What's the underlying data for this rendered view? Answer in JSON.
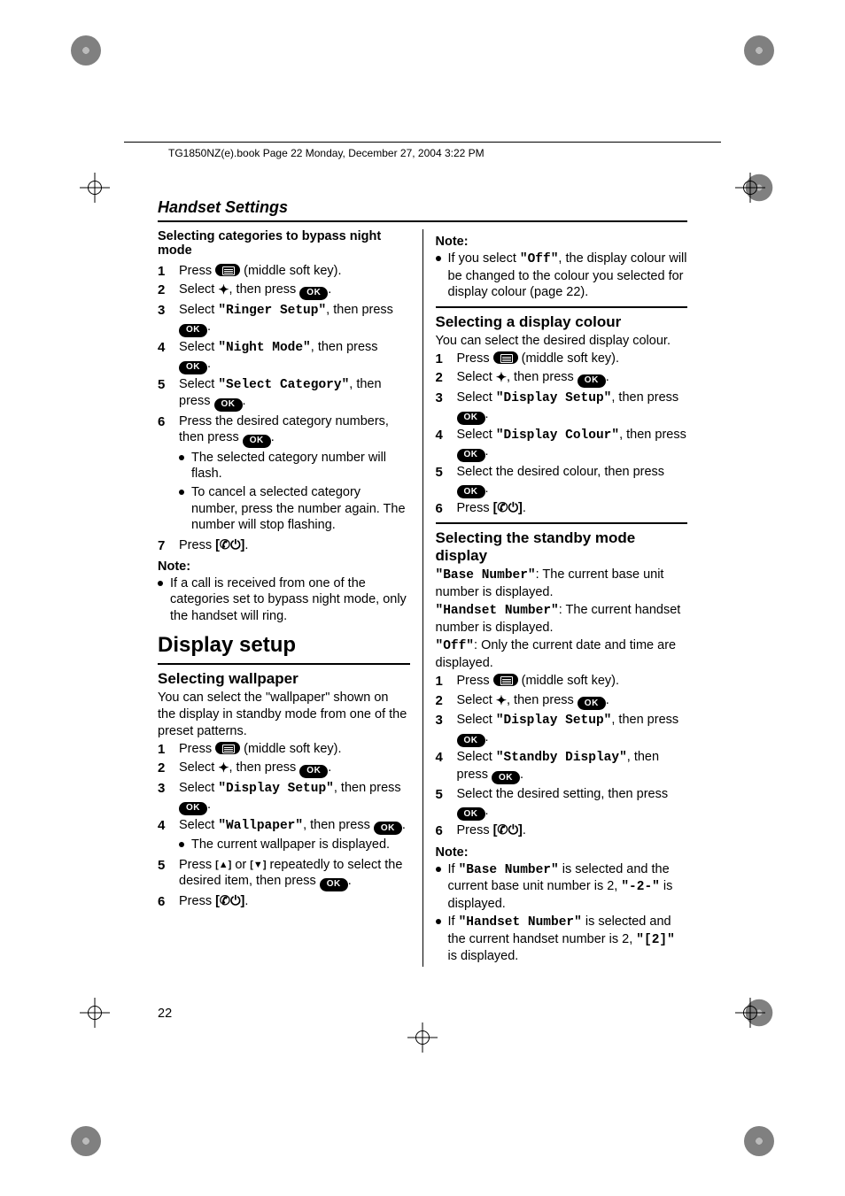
{
  "header": {
    "bookmark": "TG1850NZ(e).book  Page 22  Monday, December 27, 2004  3:22 PM"
  },
  "running_head": "Handset Settings",
  "page_number": "22",
  "keys": {
    "ok": "OK"
  },
  "misc": {
    "mid_soft_key": "(middle soft key).",
    "period": "."
  },
  "left": {
    "sec1_title": "Selecting categories to bypass night mode",
    "s1": {
      "a": "Press "
    },
    "s2": {
      "a": "Select ",
      "nav": "✦",
      "b": ", then press "
    },
    "s3": {
      "a": "Select ",
      "q": "\"Ringer Setup\"",
      "b": ", then press "
    },
    "s4": {
      "a": "Select ",
      "q": "\"Night Mode\"",
      "b": ", then press "
    },
    "s5": {
      "a": "Select ",
      "q": "\"Select Category\"",
      "b": ", then press "
    },
    "s6": {
      "a": "Press the desired category numbers, then press ",
      "b1": "The selected category number will flash.",
      "b2": "To cancel a selected category number, press the number again. The number will stop flashing."
    },
    "s7": {
      "a": "Press ",
      "k": "[✆⏻]"
    },
    "note": "Note:",
    "note1": "If a call is received from one of the categories set to bypass night mode, only the handset will ring.",
    "h_display_setup": "Display setup",
    "h_wallpaper": "Selecting wallpaper",
    "wp_intro": "You can select the \"wallpaper\" shown on the display in standby mode from one of the preset patterns.",
    "w3": {
      "q": "\"Display Setup\"",
      "b": ", then press "
    },
    "w4": {
      "q": "\"Wallpaper\"",
      "b": ", then press ",
      "b1": "The current wallpaper is displayed."
    },
    "w5": {
      "a": "Press ",
      "up": "[▲]",
      "mid": " or ",
      "dn": "[▼]",
      "b": " repeatedly to select the desired item, then press "
    }
  },
  "right": {
    "note": "Note:",
    "off_note_a": "If you select ",
    "off_q": "\"Off\"",
    "off_note_b": ", the display colour will be changed to the colour you selected for display colour (page 22).",
    "h_colour": "Selecting a display colour",
    "colour_intro": "You can select the desired display colour.",
    "c3": {
      "q": "\"Display Setup\"",
      "b": ", then press "
    },
    "c4": {
      "q": "\"Display Colour\"",
      "b": ", then press "
    },
    "c5": "Select the desired colour, then press ",
    "h_standby": "Selecting the standby mode display",
    "sb_base_q": "\"Base Number\"",
    "sb_base": ": The current base unit number is displayed.",
    "sb_hs_q": "\"Handset Number\"",
    "sb_hs": ": The current handset number is displayed.",
    "sb_off_q": "\"Off\"",
    "sb_off": ": Only the current date and time are displayed.",
    "d3": {
      "q": "\"Display Setup\"",
      "b": ", then press "
    },
    "d4": {
      "q": "\"Standby Display\"",
      "b": ", then press "
    },
    "d5": "Select the desired setting, then press ",
    "notes": {
      "n1a": "If ",
      "n1q": "\"Base Number\"",
      "n1b": " is selected and the current base unit number is 2, ",
      "n1c": "\"-2-\"",
      "n1d": " is displayed.",
      "n2a": "If ",
      "n2q": "\"Handset Number\"",
      "n2b": " is selected and the current handset number is 2, ",
      "n2c": "\"[2]\"",
      "n2d": " is displayed."
    }
  }
}
